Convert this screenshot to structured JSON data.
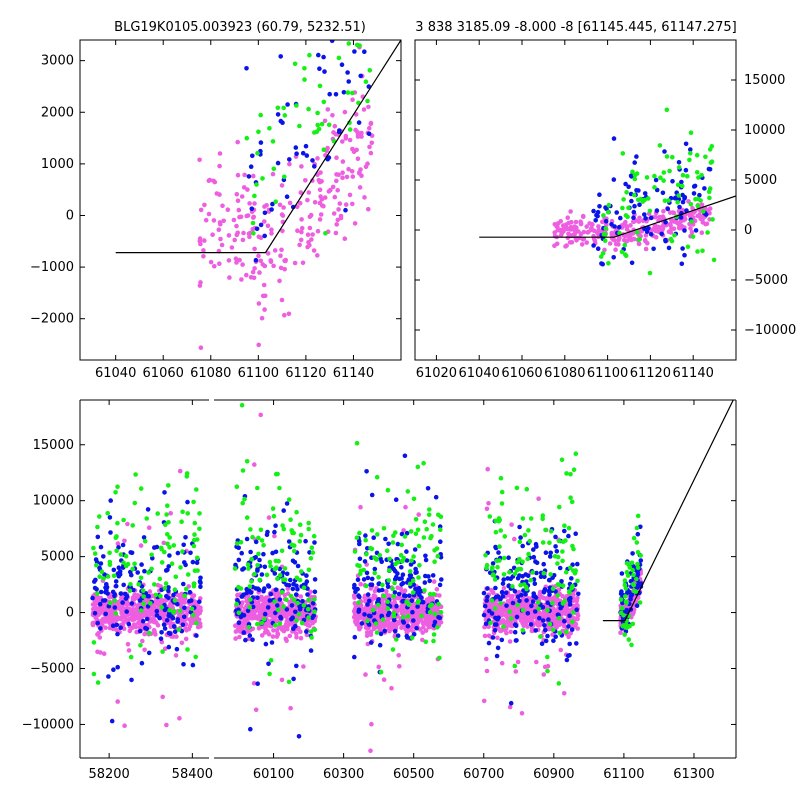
{
  "colors": {
    "magenta": "#ee5ee0",
    "blue": "#0a14e8",
    "green": "#14f014",
    "line": "#000000",
    "frame": "#000000"
  },
  "chart_data": [
    {
      "type": "scatter",
      "title": "BLG19K0105.003923 (60.79, 5232.51)",
      "xlim": [
        61025,
        61160
      ],
      "ylim": [
        -2800,
        3400
      ],
      "xticks": [
        61040,
        61060,
        61080,
        61100,
        61120,
        61140
      ],
      "yticks": [
        -2000,
        -1000,
        0,
        1000,
        2000,
        3000
      ],
      "ytick_side": "left",
      "model_line": [
        [
          61040,
          -720
        ],
        [
          61103,
          -720
        ],
        [
          61160,
          3400
        ]
      ],
      "series": [
        {
          "color": "magenta",
          "cloud": {
            "x0": 61075,
            "x1": 61148,
            "n": 260,
            "ystart": -950,
            "slope": 55,
            "spread": 650,
            "pivot": 61100,
            "flat": -300
          }
        },
        {
          "color": "blue",
          "cloud": {
            "x0": 61095,
            "x1": 61148,
            "n": 60,
            "ystart": 400,
            "slope": 45,
            "spread": 900,
            "pivot": 61095,
            "flat": 400
          }
        },
        {
          "color": "green",
          "cloud": {
            "x0": 61095,
            "x1": 61150,
            "n": 55,
            "ystart": 600,
            "slope": 50,
            "spread": 900,
            "pivot": 61095,
            "flat": 300
          }
        }
      ]
    },
    {
      "type": "scatter",
      "title": "3 838 3185.09 -8.000 -8 [61145.445, 61147.275]",
      "xlim": [
        61010,
        61160
      ],
      "ylim": [
        -13000,
        19000
      ],
      "xticks": [
        61020,
        61040,
        61060,
        61080,
        61100,
        61120,
        61140
      ],
      "yticks": [
        -10000,
        -5000,
        0,
        5000,
        10000,
        15000
      ],
      "ytick_side": "right",
      "model_line": [
        [
          61040,
          -720
        ],
        [
          61103,
          -720
        ],
        [
          61160,
          3400
        ]
      ],
      "series": [
        {
          "color": "magenta",
          "cloud": {
            "x0": 61075,
            "x1": 61148,
            "n": 300,
            "ystart": -900,
            "slope": 55,
            "spread": 700,
            "pivot": 61100,
            "flat": -300
          }
        },
        {
          "color": "blue",
          "cloud": {
            "x0": 61093,
            "x1": 61148,
            "n": 110,
            "ystart": 800,
            "slope": 45,
            "spread": 2500,
            "pivot": 61093,
            "flat": 800
          }
        },
        {
          "color": "green",
          "cloud": {
            "x0": 61093,
            "x1": 61150,
            "n": 90,
            "ystart": 1200,
            "slope": 55,
            "spread": 3500,
            "pivot": 61093,
            "flat": 1000
          }
        }
      ]
    },
    {
      "type": "scatter",
      "title": "",
      "ylim": [
        -13000,
        19000
      ],
      "yticks": [
        -10000,
        -5000,
        0,
        5000,
        10000,
        15000
      ],
      "segments": [
        {
          "xlim": [
            58130,
            58440
          ],
          "xticks": [
            58200,
            58400
          ],
          "seasons": [
            [
              58160,
              58420
            ]
          ]
        },
        {
          "xlim": [
            59930,
            61420
          ],
          "xticks": [
            60100,
            60300,
            60500,
            60700,
            60900,
            61100,
            61300
          ],
          "seasons": [
            [
              59990,
              60220
            ],
            [
              60330,
              60580
            ],
            [
              60700,
              60970
            ],
            [
              61090,
              61150
            ]
          ]
        }
      ],
      "model_line": [
        [
          61040,
          -720
        ],
        [
          61103,
          -720
        ],
        [
          61420,
          19500
        ]
      ],
      "series": [
        {
          "color": "magenta",
          "center": 0,
          "spread": 900,
          "density": 2.2
        },
        {
          "color": "blue",
          "center": 1800,
          "spread": 2600,
          "density": 0.7
        },
        {
          "color": "green",
          "center": 3500,
          "spread": 4200,
          "density": 0.45
        }
      ]
    }
  ]
}
